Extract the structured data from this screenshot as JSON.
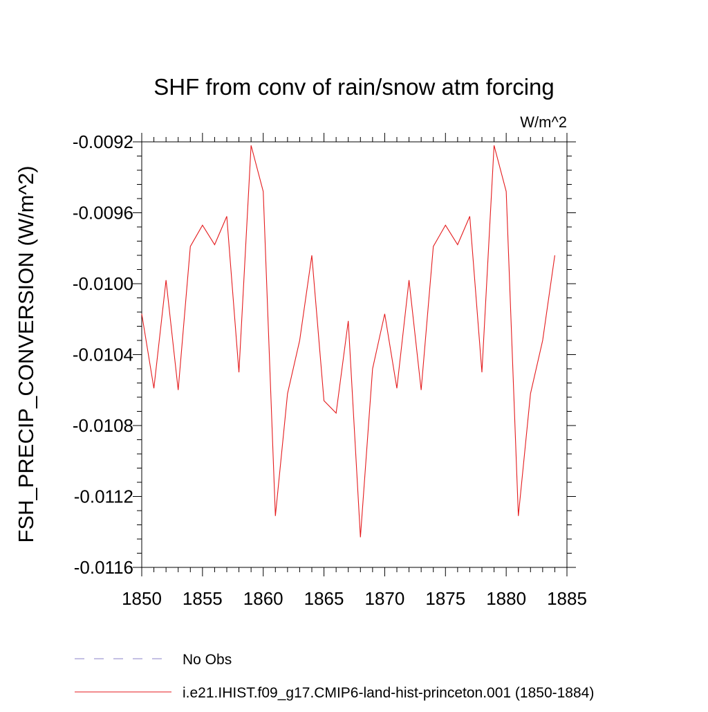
{
  "chart_data": {
    "type": "line",
    "title": "SHF from conv of rain/snow atm forcing",
    "units": "W/m^2",
    "ylabel": "FSH_PRECIP_CONVERSION  (W/m^2)",
    "xlabel": "",
    "xlim": [
      1850,
      1885
    ],
    "ylim": [
      -0.0116,
      -0.0092
    ],
    "x_ticks": [
      1850,
      1855,
      1860,
      1865,
      1870,
      1875,
      1880,
      1885
    ],
    "x_tick_labels": [
      "1850",
      "1855",
      "1860",
      "1865",
      "1870",
      "1875",
      "1880",
      "1885"
    ],
    "y_ticks": [
      -0.0092,
      -0.0096,
      -0.01,
      -0.0104,
      -0.0108,
      -0.0112,
      -0.0116
    ],
    "y_tick_labels": [
      "-0.0092",
      "-0.0096",
      "-0.0100",
      "-0.0104",
      "-0.0108",
      "-0.0112",
      "-0.0116"
    ],
    "grid": false,
    "legend_position": "bottom-left",
    "legend": [
      {
        "label": "No Obs",
        "style": "dashed",
        "color": "#8a82c8"
      },
      {
        "label": "i.e21.IHIST.f09_g17.CMIP6-land-hist-princeton.001 (1850-1884)",
        "style": "solid",
        "color": "#e41a1c"
      }
    ],
    "series": [
      {
        "name": "i.e21.IHIST.f09_g17.CMIP6-land-hist-princeton.001 (1850-1884)",
        "color": "#e41a1c",
        "x": [
          1850,
          1851,
          1852,
          1853,
          1854,
          1855,
          1856,
          1857,
          1858,
          1859,
          1860,
          1861,
          1862,
          1863,
          1864,
          1865,
          1866,
          1867,
          1868,
          1869,
          1870,
          1871,
          1872,
          1873,
          1874,
          1875,
          1876,
          1877,
          1878,
          1879,
          1880,
          1881,
          1882,
          1883,
          1884
        ],
        "y": [
          -0.01017,
          -0.01059,
          -0.00998,
          -0.0106,
          -0.00979,
          -0.00967,
          -0.00978,
          -0.00962,
          -0.0105,
          -0.00922,
          -0.00948,
          -0.01131,
          -0.01062,
          -0.01032,
          -0.00984,
          -0.01066,
          -0.01073,
          -0.01021,
          -0.01143,
          -0.01048,
          -0.01017,
          -0.01059,
          -0.00998,
          -0.0106,
          -0.00979,
          -0.00967,
          -0.00978,
          -0.00962,
          -0.0105,
          -0.00922,
          -0.00948,
          -0.01131,
          -0.01062,
          -0.01032,
          -0.00984
        ]
      }
    ]
  }
}
